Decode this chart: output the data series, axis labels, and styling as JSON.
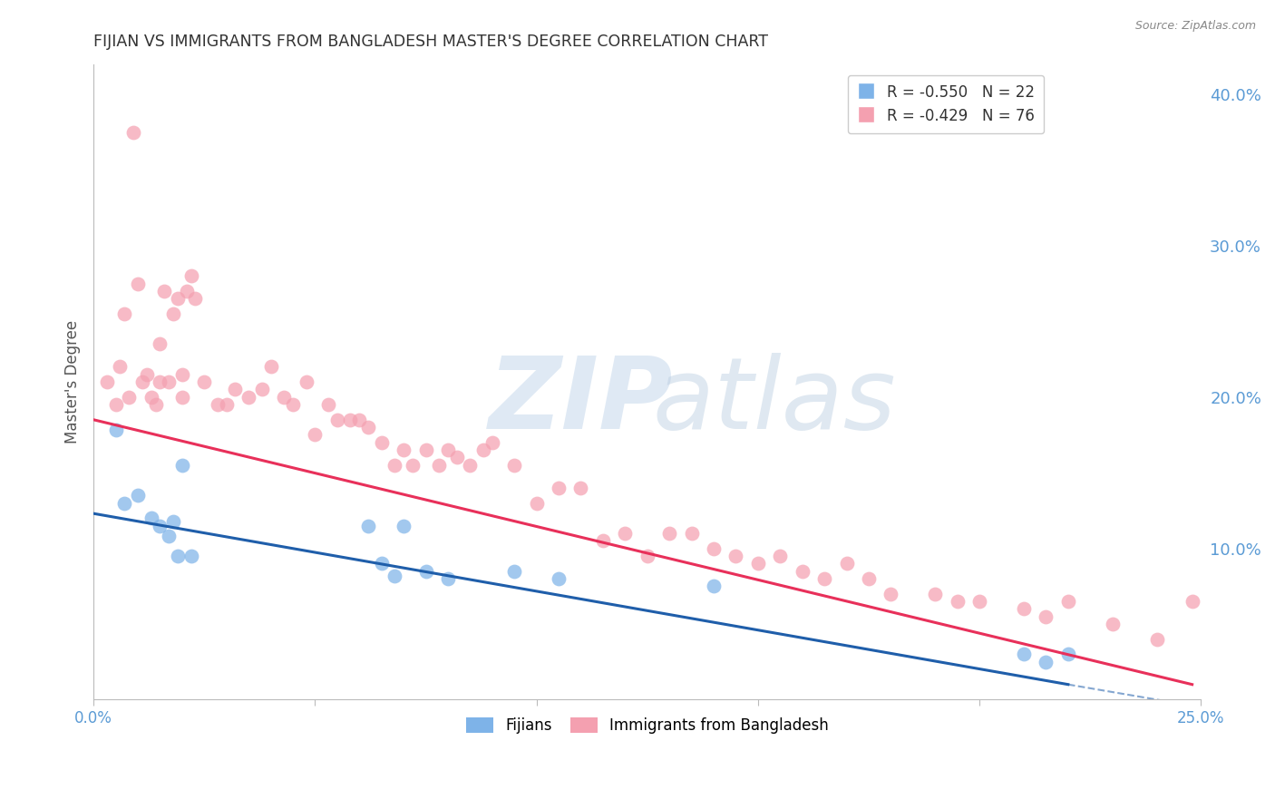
{
  "title": "FIJIAN VS IMMIGRANTS FROM BANGLADESH MASTER'S DEGREE CORRELATION CHART",
  "source": "Source: ZipAtlas.com",
  "ylabel": "Master's Degree",
  "xlim": [
    0.0,
    0.25
  ],
  "ylim": [
    0.0,
    0.42
  ],
  "y_ticks_right": [
    0.1,
    0.2,
    0.3,
    0.4
  ],
  "y_tick_labels_right": [
    "10.0%",
    "20.0%",
    "30.0%",
    "40.0%"
  ],
  "fijian_R": -0.55,
  "fijian_N": 22,
  "bangladesh_R": -0.429,
  "bangladesh_N": 76,
  "fijian_color": "#7EB3E8",
  "bangladesh_color": "#F4A0B0",
  "fijian_line_color": "#1F5EAA",
  "bangladesh_line_color": "#E8305A",
  "legend_labels": [
    "Fijians",
    "Immigrants from Bangladesh"
  ],
  "fijian_x": [
    0.005,
    0.007,
    0.01,
    0.013,
    0.015,
    0.017,
    0.018,
    0.019,
    0.02,
    0.022,
    0.062,
    0.065,
    0.068,
    0.07,
    0.075,
    0.08,
    0.095,
    0.105,
    0.14,
    0.21,
    0.215,
    0.22
  ],
  "fijian_y": [
    0.178,
    0.13,
    0.135,
    0.12,
    0.115,
    0.108,
    0.118,
    0.095,
    0.155,
    0.095,
    0.115,
    0.09,
    0.082,
    0.115,
    0.085,
    0.08,
    0.085,
    0.08,
    0.075,
    0.03,
    0.025,
    0.03
  ],
  "bangladesh_x": [
    0.003,
    0.005,
    0.006,
    0.007,
    0.008,
    0.009,
    0.01,
    0.011,
    0.012,
    0.013,
    0.014,
    0.015,
    0.015,
    0.016,
    0.017,
    0.018,
    0.019,
    0.02,
    0.02,
    0.021,
    0.022,
    0.023,
    0.025,
    0.028,
    0.03,
    0.032,
    0.035,
    0.038,
    0.04,
    0.043,
    0.045,
    0.048,
    0.05,
    0.053,
    0.055,
    0.058,
    0.06,
    0.062,
    0.065,
    0.068,
    0.07,
    0.072,
    0.075,
    0.078,
    0.08,
    0.082,
    0.085,
    0.088,
    0.09,
    0.095,
    0.1,
    0.105,
    0.11,
    0.115,
    0.12,
    0.125,
    0.13,
    0.135,
    0.14,
    0.145,
    0.15,
    0.155,
    0.16,
    0.165,
    0.17,
    0.175,
    0.18,
    0.19,
    0.195,
    0.2,
    0.21,
    0.215,
    0.22,
    0.23,
    0.24,
    0.248
  ],
  "bangladesh_y": [
    0.21,
    0.195,
    0.22,
    0.255,
    0.2,
    0.375,
    0.275,
    0.21,
    0.215,
    0.2,
    0.195,
    0.235,
    0.21,
    0.27,
    0.21,
    0.255,
    0.265,
    0.215,
    0.2,
    0.27,
    0.28,
    0.265,
    0.21,
    0.195,
    0.195,
    0.205,
    0.2,
    0.205,
    0.22,
    0.2,
    0.195,
    0.21,
    0.175,
    0.195,
    0.185,
    0.185,
    0.185,
    0.18,
    0.17,
    0.155,
    0.165,
    0.155,
    0.165,
    0.155,
    0.165,
    0.16,
    0.155,
    0.165,
    0.17,
    0.155,
    0.13,
    0.14,
    0.14,
    0.105,
    0.11,
    0.095,
    0.11,
    0.11,
    0.1,
    0.095,
    0.09,
    0.095,
    0.085,
    0.08,
    0.09,
    0.08,
    0.07,
    0.07,
    0.065,
    0.065,
    0.06,
    0.055,
    0.065,
    0.05,
    0.04,
    0.065
  ],
  "grid_color": "#DDDDDD",
  "background_color": "#FFFFFF",
  "title_color": "#333333",
  "axis_label_color": "#555555",
  "right_tick_color": "#5B9BD5",
  "bottom_tick_color": "#5B9BD5",
  "fijian_line_x0": 0.0,
  "fijian_line_y0": 0.123,
  "fijian_line_x1": 0.22,
  "fijian_line_y1": 0.01,
  "fijian_line_dash_x1": 0.25,
  "fijian_line_dash_y1": -0.005,
  "bangladesh_line_x0": 0.0,
  "bangladesh_line_y0": 0.185,
  "bangladesh_line_x1": 0.248,
  "bangladesh_line_y1": 0.01
}
